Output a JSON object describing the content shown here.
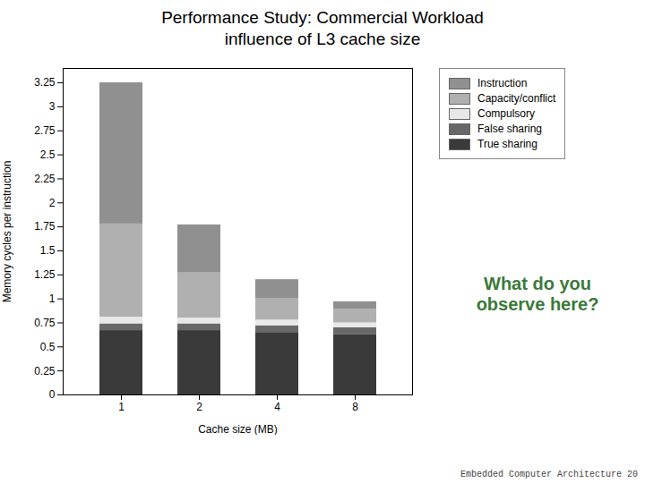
{
  "chart_data": {
    "type": "bar",
    "stacked": true,
    "title": "Performance Study:  Commercial Workload",
    "subtitle": "influence of L3 cache size",
    "xlabel": "Cache size (MB)",
    "ylabel": "Memory cycles per instruction",
    "categories": [
      1,
      2,
      4,
      8
    ],
    "series": [
      {
        "name": "True sharing",
        "color": "#3a3a3a",
        "values": [
          0.67,
          0.67,
          0.65,
          0.63
        ]
      },
      {
        "name": "False sharing",
        "color": "#686868",
        "values": [
          0.07,
          0.07,
          0.07,
          0.07
        ]
      },
      {
        "name": "Compulsory",
        "color": "#e8e8e8",
        "values": [
          0.07,
          0.06,
          0.06,
          0.05
        ]
      },
      {
        "name": "Capacity/conflict",
        "color": "#b0b0b0",
        "values": [
          0.97,
          0.47,
          0.22,
          0.14
        ]
      },
      {
        "name": "Instruction",
        "color": "#909090",
        "values": [
          1.47,
          0.5,
          0.2,
          0.08
        ]
      }
    ],
    "ylim": [
      0,
      3.4
    ],
    "yticks": [
      0,
      0.25,
      0.5,
      0.75,
      1,
      1.25,
      1.5,
      1.75,
      2,
      2.25,
      2.5,
      2.75,
      3,
      3.25
    ],
    "legend": "upper right",
    "grid": false,
    "annotations": [
      {
        "text": "What do you\nobserve here?",
        "color": "#3a7a3a"
      }
    ],
    "footnote": "Embedded Computer Architecture  20"
  }
}
